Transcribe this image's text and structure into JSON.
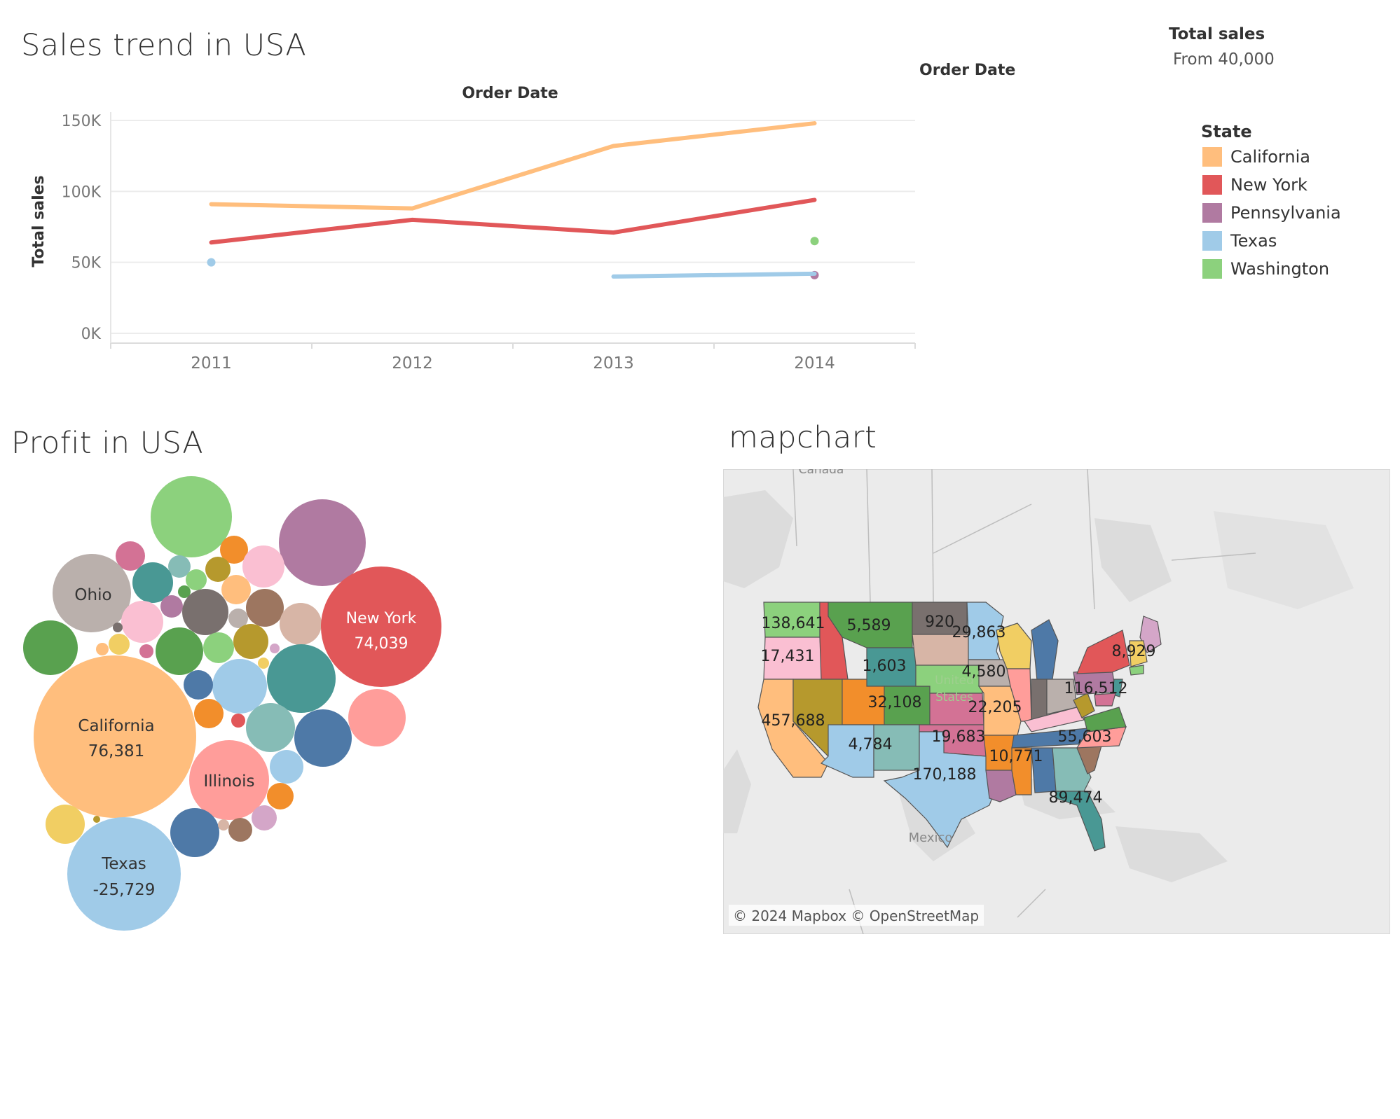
{
  "line_chart_title": "Sales trend in USA",
  "line_chart_header": "Order Date",
  "filter": {
    "header": "Order Date",
    "measure_label": "Total sales",
    "measure_value": "From 40,000"
  },
  "legend": {
    "title": "State",
    "items": [
      {
        "label": "California",
        "color": "#ffbe7d"
      },
      {
        "label": "New York",
        "color": "#e15759"
      },
      {
        "label": "Pennsylvania",
        "color": "#b07aa1"
      },
      {
        "label": "Texas",
        "color": "#a0cbe8"
      },
      {
        "label": "Washington",
        "color": "#8cd17d"
      }
    ]
  },
  "bubble_title": "Profit in USA",
  "map_title": "mapchart",
  "map_attribution": "© 2024 Mapbox © OpenStreetMap",
  "map_place_labels": [
    "Canada",
    "United States",
    "Mexico"
  ],
  "chart_data": [
    {
      "type": "line",
      "title": "Sales trend in USA",
      "xlabel": "Order Date",
      "ylabel": "Total sales",
      "x": [
        "2011",
        "2012",
        "2013",
        "2014"
      ],
      "yticks": [
        "0K",
        "50K",
        "100K",
        "150K"
      ],
      "ylim": [
        0,
        155000
      ],
      "grid": true,
      "legend_position": "right",
      "series": [
        {
          "name": "California",
          "color": "#ffbe7d",
          "values": [
            91000,
            88000,
            132000,
            148000
          ]
        },
        {
          "name": "New York",
          "color": "#e15759",
          "values": [
            64000,
            80000,
            71000,
            94000
          ]
        },
        {
          "name": "Pennsylvania",
          "color": "#b07aa1",
          "values": [
            null,
            null,
            null,
            41000
          ]
        },
        {
          "name": "Texas",
          "color": "#a0cbe8",
          "values": [
            50000,
            null,
            40000,
            42000
          ]
        },
        {
          "name": "Washington",
          "color": "#8cd17d",
          "values": [
            null,
            null,
            null,
            65000
          ]
        }
      ]
    },
    {
      "type": "bubble",
      "title": "Profit in USA",
      "labeled_bubbles": [
        {
          "state": "California",
          "profit": "76,381",
          "color": "#ffbe7d"
        },
        {
          "state": "New York",
          "profit": "74,039",
          "color": "#e15759"
        },
        {
          "state": "Texas",
          "profit": "-25,729",
          "color": "#a0cbe8"
        },
        {
          "state": "Illinois",
          "profit": "",
          "color": "#ff9d9a"
        },
        {
          "state": "Ohio",
          "profit": "",
          "color": "#bab0ac"
        }
      ],
      "unlabeled_bubble_colors": [
        "#8cd17d",
        "#b07aa1",
        "#59a14f",
        "#499894",
        "#4e79a7",
        "#f28e2b",
        "#fabfd2",
        "#d4a6c8",
        "#79706e",
        "#9d7660",
        "#d7b5a6",
        "#86bcb6",
        "#b6992d",
        "#f1ce63",
        "#ffbe7d",
        "#a0cbe8",
        "#e15759",
        "#d37295"
      ]
    },
    {
      "type": "map",
      "title": "mapchart",
      "value_labels": [
        "138,641",
        "5,589",
        "920",
        "29,863",
        "17,431",
        "1,603",
        "4,580",
        "8,929",
        "116,512",
        "457,688",
        "32,108",
        "22,205",
        "19,683",
        "55,603",
        "4,784",
        "10,771",
        "170,188",
        "89,474"
      ]
    }
  ]
}
